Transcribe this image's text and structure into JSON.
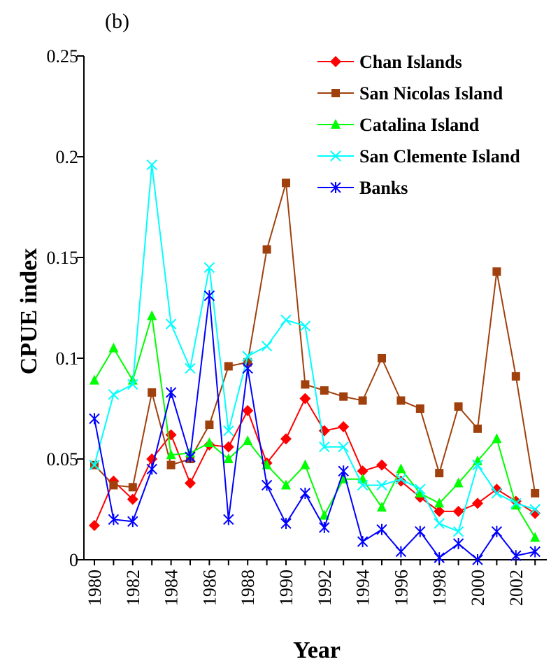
{
  "panel_label": "(b)",
  "chart_data": {
    "type": "line",
    "xlabel": "Year",
    "ylabel": "CPUE index",
    "xlim": [
      1980,
      2003
    ],
    "ylim": [
      0,
      0.25
    ],
    "x": [
      1980,
      1981,
      1982,
      1983,
      1984,
      1985,
      1986,
      1987,
      1988,
      1989,
      1990,
      1991,
      1992,
      1993,
      1994,
      1995,
      1996,
      1997,
      1998,
      1999,
      2000,
      2001,
      2002,
      2003
    ],
    "y_ticks": [
      0,
      0.05,
      0.1,
      0.15,
      0.2,
      0.25
    ],
    "y_tick_labels": [
      "0",
      "0.05",
      "0.1",
      "0.15",
      "0.2",
      "0.25"
    ],
    "x_ticks": [
      1980,
      1982,
      1984,
      1986,
      1988,
      1990,
      1992,
      1994,
      1996,
      1998,
      2000,
      2002
    ],
    "x_tick_labels": [
      "1980",
      "1982",
      "1984",
      "1986",
      "1988",
      "1990",
      "1992",
      "1994",
      "1996",
      "1998",
      "2000",
      "2002"
    ],
    "legend_position": "top-right",
    "grid": false,
    "series": [
      {
        "name": "Chan Islands",
        "color": "#ff0000",
        "marker": "diamond",
        "values": [
          0.017,
          0.039,
          0.03,
          0.05,
          0.062,
          0.038,
          0.057,
          0.056,
          0.074,
          0.048,
          0.06,
          0.08,
          0.064,
          0.066,
          0.044,
          0.047,
          0.039,
          0.031,
          0.024,
          0.024,
          0.028,
          0.035,
          0.029,
          0.023
        ]
      },
      {
        "name": "San Nicolas Island",
        "color": "#a0400c",
        "marker": "square",
        "values": [
          0.047,
          0.037,
          0.036,
          0.083,
          0.047,
          0.05,
          0.067,
          0.096,
          0.098,
          0.154,
          0.187,
          0.087,
          0.084,
          0.081,
          0.079,
          0.1,
          0.079,
          0.075,
          0.043,
          0.076,
          0.065,
          0.143,
          0.091,
          0.033
        ]
      },
      {
        "name": "Catalina Island",
        "color": "#00ff00",
        "marker": "triangle",
        "values": [
          0.089,
          0.105,
          0.089,
          0.121,
          0.052,
          0.053,
          0.058,
          0.05,
          0.059,
          0.047,
          0.037,
          0.047,
          0.022,
          0.04,
          0.04,
          0.026,
          0.045,
          0.033,
          0.028,
          0.038,
          0.049,
          0.06,
          0.027,
          0.011
        ]
      },
      {
        "name": "San Clemente Island",
        "color": "#00ffff",
        "marker": "x",
        "values": [
          0.047,
          0.082,
          0.087,
          0.196,
          0.117,
          0.095,
          0.145,
          0.064,
          0.101,
          0.106,
          0.119,
          0.116,
          0.056,
          0.056,
          0.037,
          0.037,
          0.04,
          0.035,
          0.018,
          0.014,
          0.047,
          0.033,
          0.028,
          0.025
        ]
      },
      {
        "name": "Banks",
        "color": "#0000ff",
        "marker": "star",
        "values": [
          0.07,
          0.02,
          0.019,
          0.045,
          0.083,
          0.051,
          0.131,
          0.02,
          0.095,
          0.037,
          0.018,
          0.033,
          0.016,
          0.044,
          0.009,
          0.015,
          0.004,
          0.014,
          0.001,
          0.008,
          0.0,
          0.014,
          0.002,
          0.004
        ]
      }
    ]
  }
}
